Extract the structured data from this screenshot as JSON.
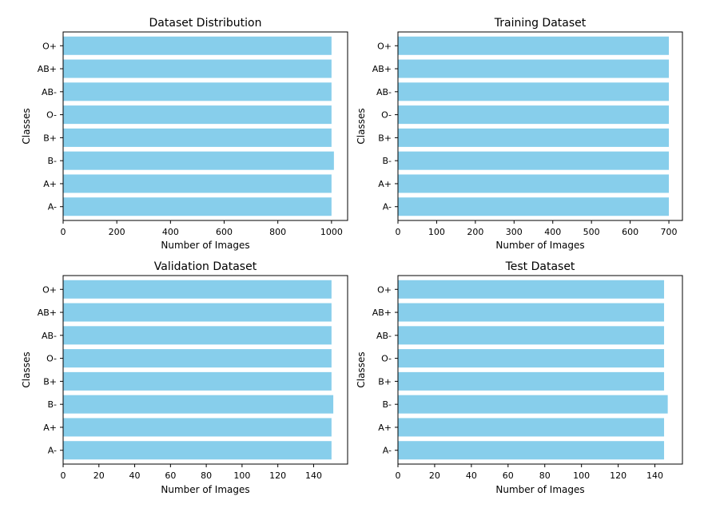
{
  "colors": {
    "bar": "#87CEEB",
    "axis": "#000000",
    "background": "#ffffff"
  },
  "chart_data": [
    {
      "type": "bar",
      "orientation": "horizontal",
      "title": "Dataset Distribution",
      "xlabel": "Number of Images",
      "ylabel": "Classes",
      "categories": [
        "A-",
        "A+",
        "B-",
        "B+",
        "O-",
        "AB-",
        "AB+",
        "O+"
      ],
      "values": [
        1000,
        1000,
        1009,
        1000,
        1000,
        1000,
        1000,
        1000
      ],
      "xlim": [
        0,
        1060
      ],
      "xticks": [
        0,
        200,
        400,
        600,
        800,
        1000
      ],
      "grid": false
    },
    {
      "type": "bar",
      "orientation": "horizontal",
      "title": "Training Dataset",
      "xlabel": "Number of Images",
      "ylabel": "Classes",
      "categories": [
        "A-",
        "A+",
        "B-",
        "B+",
        "O-",
        "AB-",
        "AB+",
        "O+"
      ],
      "values": [
        700,
        700,
        700,
        700,
        700,
        700,
        700,
        700
      ],
      "xlim": [
        0,
        735
      ],
      "xticks": [
        0,
        100,
        200,
        300,
        400,
        500,
        600,
        700
      ],
      "grid": false
    },
    {
      "type": "bar",
      "orientation": "horizontal",
      "title": "Validation Dataset",
      "xlabel": "Number of Images",
      "ylabel": "Classes",
      "categories": [
        "A-",
        "A+",
        "B-",
        "B+",
        "O-",
        "AB-",
        "AB+",
        "O+"
      ],
      "values": [
        150,
        150,
        151,
        150,
        150,
        150,
        150,
        150
      ],
      "xlim": [
        0,
        159
      ],
      "xticks": [
        0,
        20,
        40,
        60,
        80,
        100,
        120,
        140
      ],
      "grid": false
    },
    {
      "type": "bar",
      "orientation": "horizontal",
      "title": "Test Dataset",
      "xlabel": "Number of Images",
      "ylabel": "Classes",
      "categories": [
        "A-",
        "A+",
        "B-",
        "B+",
        "O-",
        "AB-",
        "AB+",
        "O+"
      ],
      "values": [
        145,
        145,
        147,
        145,
        145,
        145,
        145,
        145
      ],
      "xlim": [
        0,
        155
      ],
      "xticks": [
        0,
        20,
        40,
        60,
        80,
        100,
        120,
        140
      ],
      "grid": false
    }
  ]
}
